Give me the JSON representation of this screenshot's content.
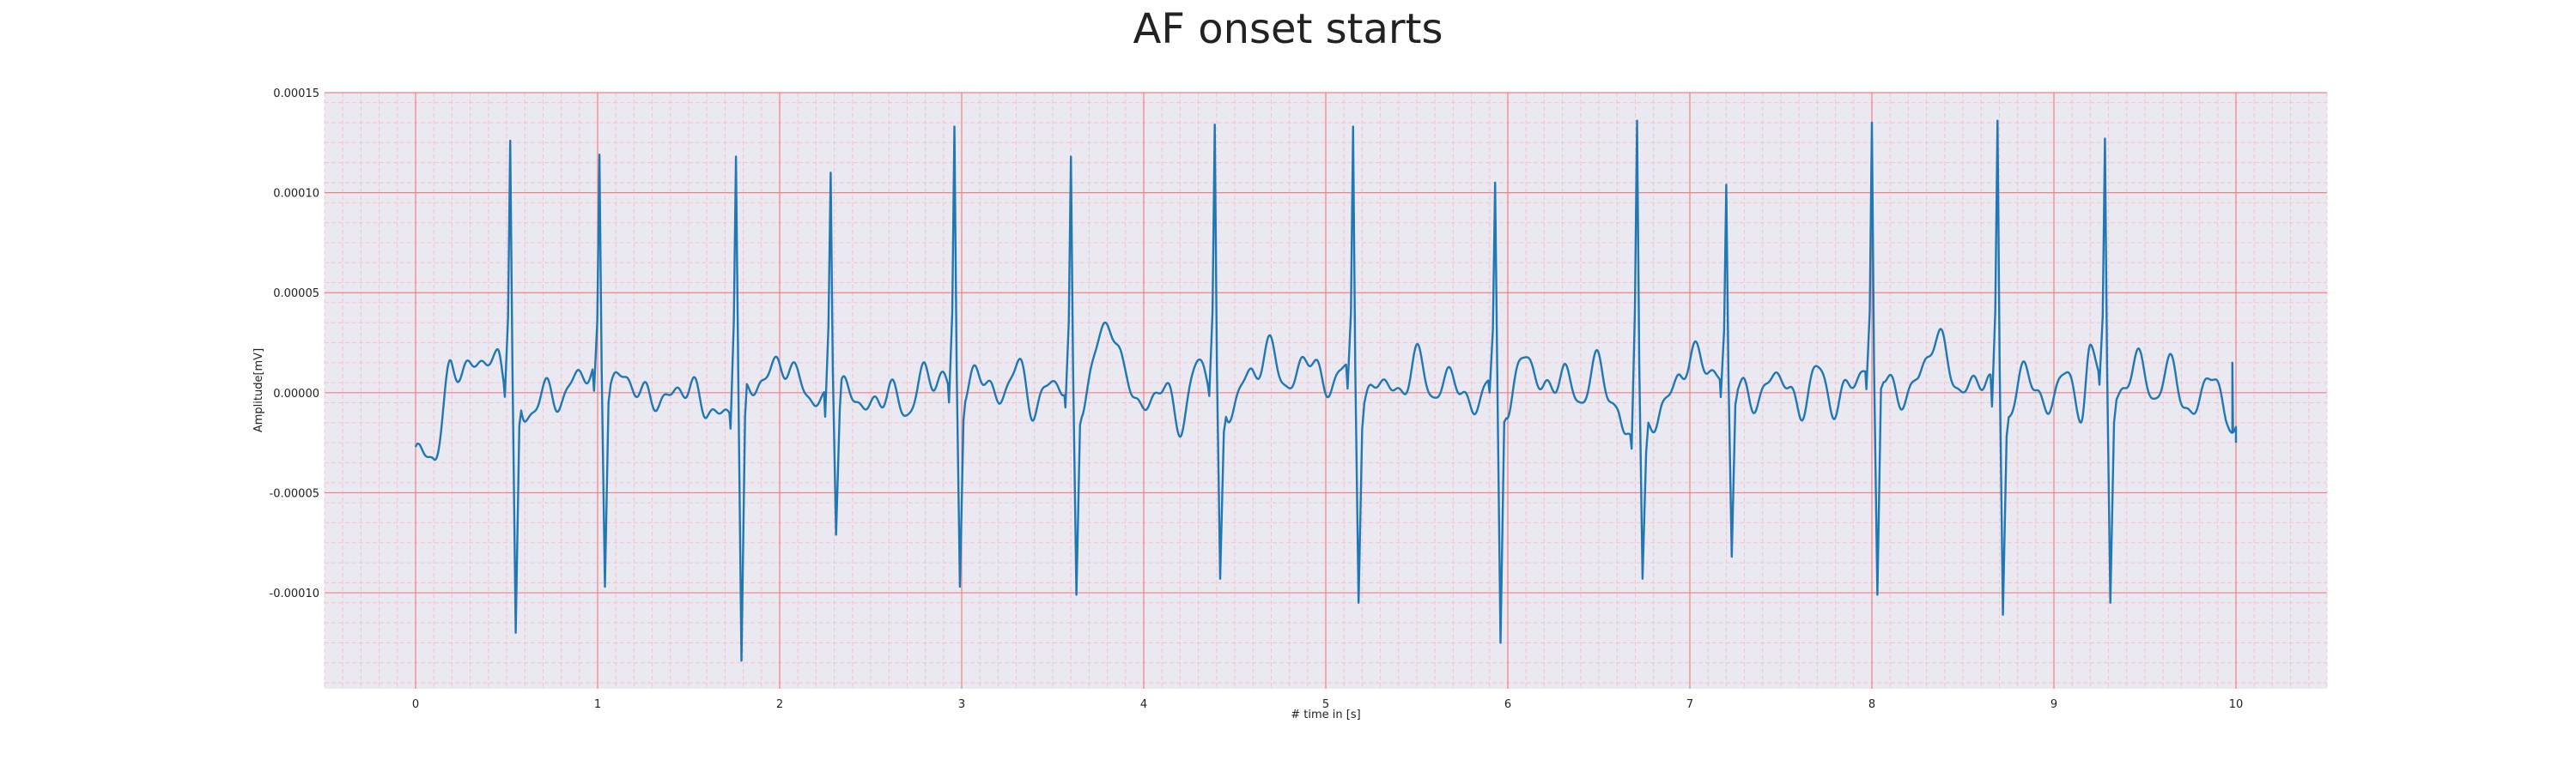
{
  "chart_data": {
    "type": "line",
    "title": "AF onset starts",
    "xlabel": "# time in [s]",
    "ylabel": "Amplitude[mV]",
    "xlim": [
      -0.5,
      10.5
    ],
    "ylim": [
      -0.000148,
      0.00015
    ],
    "x_ticks": [
      0,
      1,
      2,
      3,
      4,
      5,
      6,
      7,
      8,
      9,
      10
    ],
    "x_tick_labels": [
      "0",
      "1",
      "2",
      "3",
      "4",
      "5",
      "6",
      "7",
      "8",
      "9",
      "10"
    ],
    "y_ticks": [
      -0.0001,
      -5e-05,
      0.0,
      5e-05,
      0.0001,
      0.00015
    ],
    "y_tick_labels": [
      "-0.00010",
      "-0.00005",
      "0.00000",
      "0.00005",
      "0.00010",
      "0.00015"
    ],
    "grid": true,
    "colors": {
      "line": "#1f77b4",
      "plot_background": "#eae9f2",
      "major_grid": "#f08080",
      "minor_grid": "#f3c4cc",
      "text": "#222222"
    },
    "beats": [
      {
        "t": 0.52,
        "peak": 0.000126,
        "trough": -0.00012
      },
      {
        "t": 1.01,
        "peak": 0.000119,
        "trough": -9.7e-05
      },
      {
        "t": 1.76,
        "peak": 0.000118,
        "trough": -0.000134
      },
      {
        "t": 2.28,
        "peak": 0.00011,
        "trough": -7.1e-05
      },
      {
        "t": 2.96,
        "peak": 0.000133,
        "trough": -9.7e-05
      },
      {
        "t": 3.6,
        "peak": 0.000118,
        "trough": -0.000101
      },
      {
        "t": 4.39,
        "peak": 0.000134,
        "trough": -9.3e-05
      },
      {
        "t": 5.15,
        "peak": 0.000133,
        "trough": -0.000105
      },
      {
        "t": 5.93,
        "peak": 0.000105,
        "trough": -0.000125
      },
      {
        "t": 6.71,
        "peak": 0.000136,
        "trough": -9.3e-05
      },
      {
        "t": 7.2,
        "peak": 0.000104,
        "trough": -8.2e-05
      },
      {
        "t": 8.0,
        "peak": 0.000135,
        "trough": -0.000101
      },
      {
        "t": 8.69,
        "peak": 0.000136,
        "trough": -0.000111
      },
      {
        "t": 9.28,
        "peak": 0.000127,
        "trough": -0.000105
      }
    ],
    "series": [
      {
        "values": {
          "x": [
            0.0,
            0.1,
            0.2,
            0.3,
            0.4,
            0.45,
            0.5,
            0.55,
            0.6,
            0.7,
            0.8,
            0.9,
            0.95,
            1.05,
            1.1,
            1.2,
            1.3,
            1.4,
            1.5,
            1.6,
            1.7,
            1.8,
            1.9,
            2.0,
            2.1,
            2.2,
            2.35,
            2.5,
            2.6,
            2.7,
            2.8,
            2.9,
            3.0,
            3.1,
            3.2,
            3.3,
            3.4,
            3.5,
            3.65,
            3.8,
            3.9,
            4.0,
            4.1,
            4.2,
            4.3,
            4.45,
            4.6,
            4.7,
            4.8,
            4.9,
            5.0,
            5.1,
            5.2,
            5.3,
            5.4,
            5.5,
            5.6,
            5.7,
            5.8,
            5.9,
            6.0,
            6.1,
            6.2,
            6.3,
            6.4,
            6.5,
            6.6,
            6.65,
            6.75,
            6.85,
            6.95,
            7.05,
            7.15,
            7.25,
            7.35,
            7.5,
            7.6,
            7.7,
            7.8,
            7.9,
            8.05,
            8.15,
            8.25,
            8.35,
            8.5,
            8.6,
            8.75,
            8.85,
            8.95,
            9.05,
            9.15,
            9.2,
            9.35,
            9.45,
            9.55,
            9.65,
            9.75,
            9.85,
            9.95,
            10.0
          ],
          "y": [
            -3e-05,
            -3.2e-05,
            1.2e-05,
            1.2e-05,
            1.8e-05,
            1.5e-05,
            5e-06,
            -2e-06,
            -1.5e-05,
            1e-06,
            -4e-06,
            1e-05,
            1e-05,
            5e-06,
            8e-06,
            4e-06,
            -4e-06,
            -2e-06,
            4e-06,
            -8e-06,
            -1.2e-05,
            -2e-06,
            6e-06,
            1.5e-05,
            8e-06,
            -6e-06,
            2e-06,
            -8e-06,
            2e-06,
            -1e-05,
            1e-05,
            5e-06,
            -4e-06,
            1.2e-05,
            -5e-06,
            1.4e-05,
            -8e-06,
            6e-06,
            -6e-06,
            3.6e-05,
            1e-05,
            -1e-05,
            5e-06,
            -1.6e-05,
            1.5e-05,
            -1e-05,
            1e-05,
            2.2e-05,
            1e-06,
            2e-05,
            2e-06,
            1.2e-05,
            -8e-06,
            8e-06,
            -2e-06,
            1.8e-05,
            -2e-06,
            1e-05,
            -1e-05,
            8e-06,
            -6e-06,
            2e-05,
            0.0,
            1e-05,
            -4e-06,
            1.6e-05,
            -1.2e-05,
            -2e-05,
            -2e-05,
            -8e-06,
            1e-05,
            2e-05,
            6e-06,
            4e-06,
            -4e-06,
            1e-05,
            -1e-05,
            1.2e-05,
            -8e-06,
            8e-06,
            1.2e-05,
            -4e-06,
            6e-06,
            2.8e-05,
            0.0,
            8e-06,
            -1.2e-05,
            1.4e-05,
            -1e-05,
            1e-05,
            -8e-06,
            1.8e-05,
            -6e-06,
            1.8e-05,
            -2e-06,
            1.4e-05,
            -1.4e-05,
            1e-05,
            -1e-05,
            -2e-05
          ]
        }
      }
    ]
  }
}
